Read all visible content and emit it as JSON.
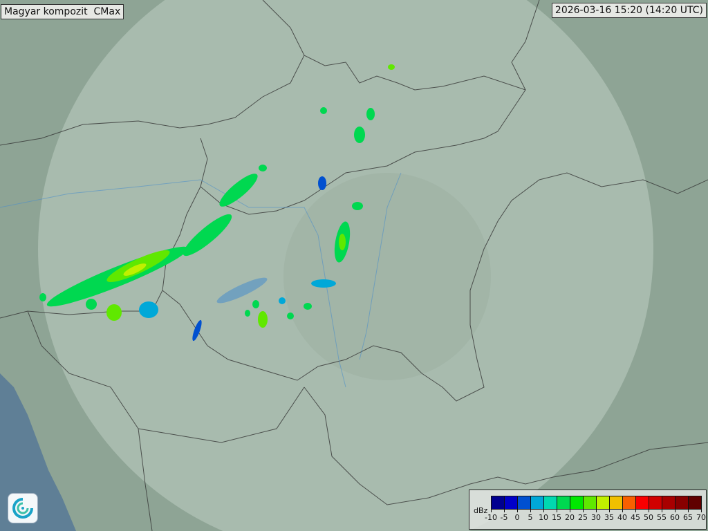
{
  "title": "Magyar kompozit  CMax",
  "timestamp": "2026-03-16 15:20 (14:20 UTC)",
  "logo": "HungaroMet swirl logo",
  "legend": {
    "unit": "dBz",
    "ticks": [
      "-10",
      "-5",
      "0",
      "5",
      "10",
      "15",
      "20",
      "25",
      "30",
      "35",
      "40",
      "45",
      "50",
      "55",
      "60",
      "65",
      "70"
    ],
    "colors": [
      "#00008f",
      "#0000c8",
      "#0050d0",
      "#00a8d8",
      "#00d8b0",
      "#00d850",
      "#00e800",
      "#60e800",
      "#c0f000",
      "#f0c000",
      "#f86000",
      "#f80000",
      "#d00000",
      "#a80000",
      "#880000",
      "#600000"
    ]
  },
  "map": {
    "background_color": "#8ea495",
    "coverage_color": "#c8d6cc",
    "sea_color": "#5f7f96",
    "radar_echo_colors": [
      "#00d850",
      "#00e800",
      "#60e800",
      "#c0f000",
      "#00a8d8",
      "#0050d0"
    ]
  }
}
